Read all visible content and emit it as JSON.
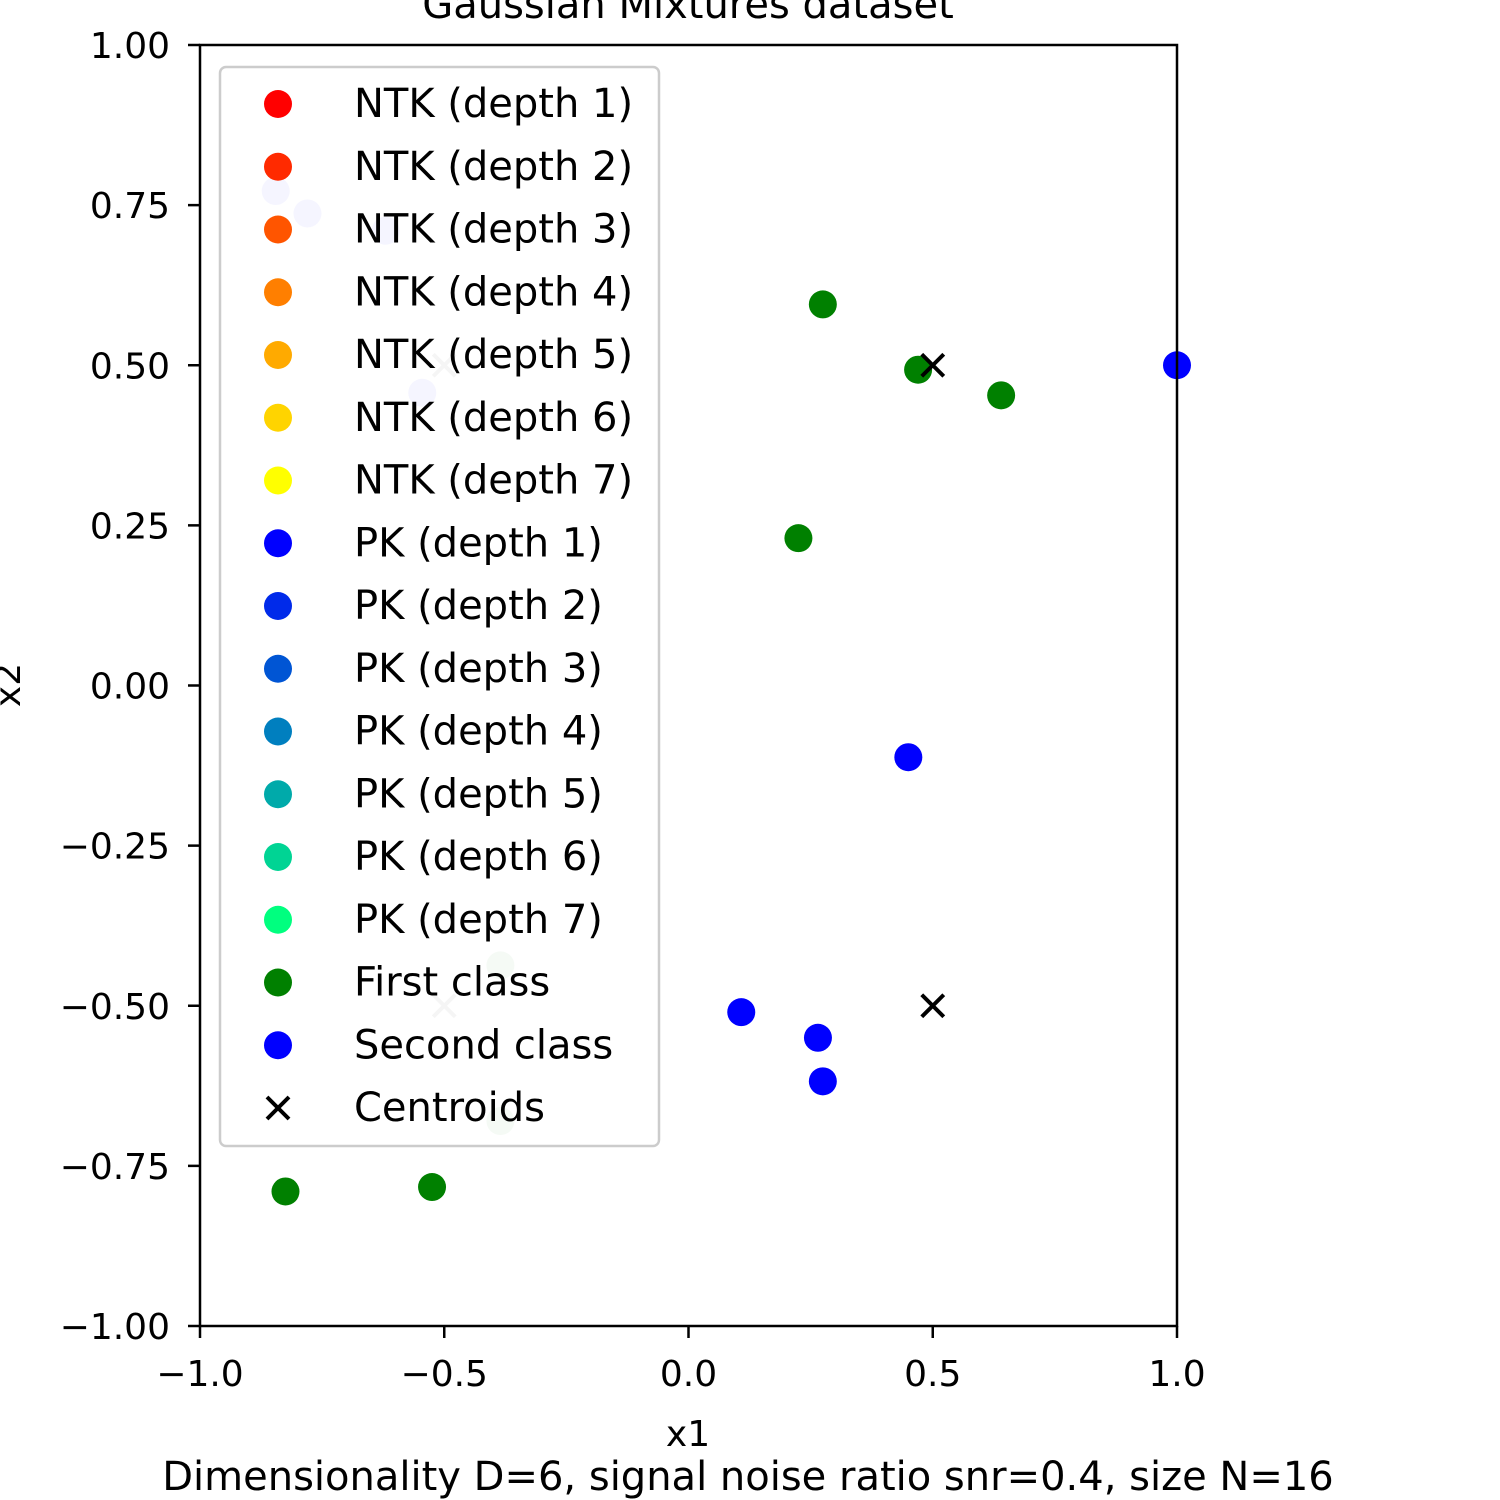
{
  "chart_data": {
    "type": "scatter",
    "title": "Gaussian Mixtures dataset",
    "caption": "Dimensionality D=6, signal noise ratio snr=0.4, size N=16",
    "xlabel": "x1",
    "ylabel": "x2",
    "xlim": [
      -1.0,
      1.0
    ],
    "ylim": [
      -1.0,
      1.0
    ],
    "xticks": [
      -1.0,
      -0.5,
      0.0,
      0.5,
      1.0
    ],
    "xtick_labels": [
      "−1.0",
      "−0.5",
      "0.0",
      "0.5",
      "1.0"
    ],
    "yticks": [
      1.0,
      0.75,
      0.5,
      0.25,
      0.0,
      -0.25,
      -0.5,
      -0.75,
      -1.0
    ],
    "ytick_labels": [
      "1.00",
      "0.75",
      "0.50",
      "0.25",
      "0.00",
      "−0.25",
      "−0.50",
      "−0.75",
      "−1.00"
    ],
    "grid": false,
    "legend_position": "upper-left",
    "legend": [
      {
        "label": "NTK (depth 1)",
        "color": "#ff0000",
        "marker": "circle"
      },
      {
        "label": "NTK (depth 2)",
        "color": "#ff2a00",
        "marker": "circle"
      },
      {
        "label": "NTK (depth 3)",
        "color": "#ff5500",
        "marker": "circle"
      },
      {
        "label": "NTK (depth 4)",
        "color": "#ff7f00",
        "marker": "circle"
      },
      {
        "label": "NTK (depth 5)",
        "color": "#ffaa00",
        "marker": "circle"
      },
      {
        "label": "NTK (depth 6)",
        "color": "#ffd400",
        "marker": "circle"
      },
      {
        "label": "NTK (depth 7)",
        "color": "#ffff00",
        "marker": "circle"
      },
      {
        "label": "PK (depth 1)",
        "color": "#0000ff",
        "marker": "circle"
      },
      {
        "label": "PK (depth 2)",
        "color": "#002aea",
        "marker": "circle"
      },
      {
        "label": "PK (depth 3)",
        "color": "#0055d4",
        "marker": "circle"
      },
      {
        "label": "PK (depth 4)",
        "color": "#007fbf",
        "marker": "circle"
      },
      {
        "label": "PK (depth 5)",
        "color": "#00aaaa",
        "marker": "circle"
      },
      {
        "label": "PK (depth 6)",
        "color": "#00d494",
        "marker": "circle"
      },
      {
        "label": "PK (depth 7)",
        "color": "#00ff7f",
        "marker": "circle"
      },
      {
        "label": "First class",
        "color": "#008000",
        "marker": "circle"
      },
      {
        "label": "Second class",
        "color": "#0000ff",
        "marker": "circle"
      },
      {
        "label": "Centroids",
        "color": "#000000",
        "marker": "x"
      }
    ],
    "series": [
      {
        "name": "First class",
        "color": "#008000",
        "marker": "circle",
        "points": [
          [
            0.275,
            0.595
          ],
          [
            0.47,
            0.493
          ],
          [
            0.64,
            0.453
          ],
          [
            0.225,
            0.23
          ],
          [
            -0.825,
            -0.79
          ],
          [
            -0.525,
            -0.783
          ]
        ]
      },
      {
        "name": "Second class",
        "color": "#0000ff",
        "marker": "circle",
        "points": [
          [
            1.0,
            0.5
          ],
          [
            0.45,
            -0.112
          ],
          [
            0.108,
            -0.51
          ],
          [
            0.265,
            -0.55
          ],
          [
            0.275,
            -0.618
          ]
        ]
      },
      {
        "name": "Centroids",
        "color": "#000000",
        "marker": "x",
        "points": [
          [
            0.5,
            0.5
          ],
          [
            0.5,
            -0.5
          ]
        ]
      },
      {
        "name": "",
        "color": "#ccccff",
        "marker": "circle",
        "faded": true,
        "points": [
          [
            -0.845,
            0.772
          ],
          [
            -0.78,
            0.737
          ],
          [
            -0.62,
            0.71
          ],
          [
            -0.545,
            0.457
          ]
        ]
      },
      {
        "name": "",
        "color": "#cce6cc",
        "marker": "circle",
        "faded": true,
        "points": [
          [
            -0.385,
            -0.437
          ],
          [
            -0.385,
            -0.68
          ]
        ]
      },
      {
        "name": "",
        "color": "#cccccc",
        "marker": "x",
        "faded": true,
        "points": [
          [
            -0.5,
            0.5
          ],
          [
            -0.5,
            -0.5
          ]
        ]
      }
    ]
  }
}
